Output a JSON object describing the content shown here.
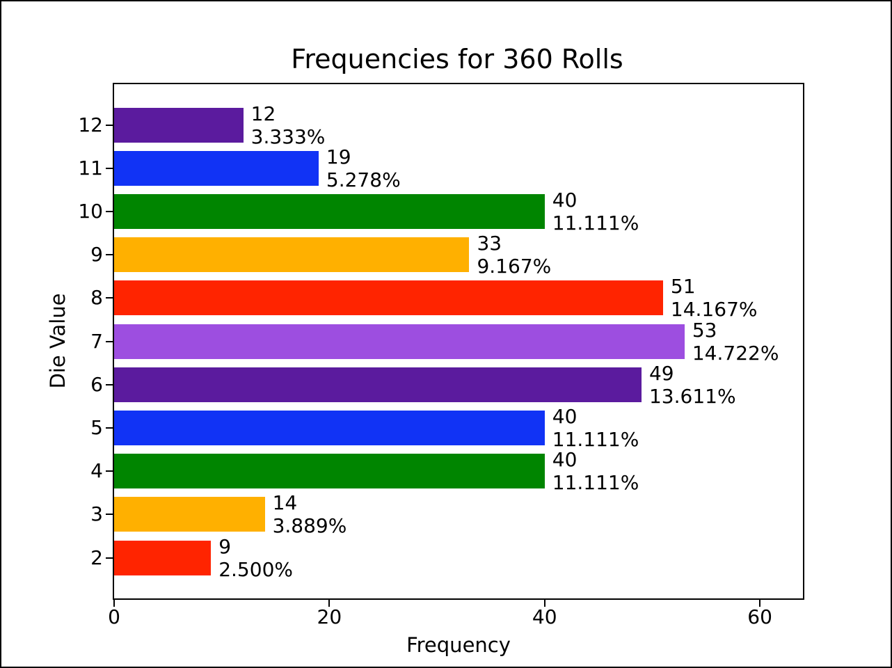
{
  "chart_data": {
    "type": "bar",
    "orientation": "horizontal",
    "title": "Frequencies for 360 Rolls",
    "xlabel": "Frequency",
    "ylabel": "Die Value",
    "total_rolls": 360,
    "categories": [
      2,
      3,
      4,
      5,
      6,
      7,
      8,
      9,
      10,
      11,
      12
    ],
    "values": [
      9,
      14,
      40,
      40,
      49,
      53,
      51,
      33,
      40,
      19,
      12
    ],
    "percent_labels": [
      "2.500%",
      "3.889%",
      "11.111%",
      "11.111%",
      "13.611%",
      "14.722%",
      "14.167%",
      "9.167%",
      "11.111%",
      "5.278%",
      "3.333%"
    ],
    "bar_colors": [
      "#FF2400",
      "#FFB000",
      "#008500",
      "#1133F5",
      "#5B1B9E",
      "#9D4EE0",
      "#FF2400",
      "#FFB000",
      "#008500",
      "#1133F5",
      "#5B1B9E"
    ],
    "xlim": [
      0,
      64
    ],
    "xticks": [
      0,
      20,
      40,
      60
    ],
    "grid": false,
    "legend_position": "none",
    "axis_color": "#000000",
    "background_color": "#ffffff"
  }
}
